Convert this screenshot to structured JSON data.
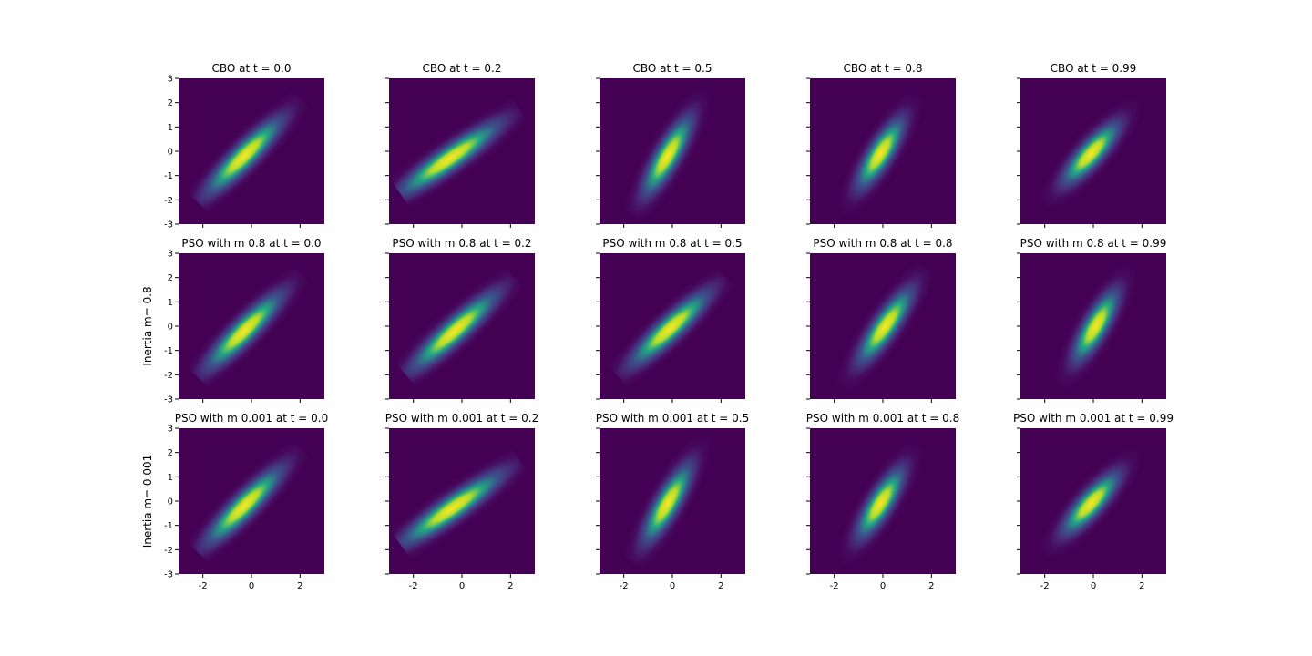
{
  "chart_data": [
    {
      "type": "heatmap",
      "title": "CBO at t = 0.0",
      "xlim": [
        -3,
        3
      ],
      "ylim": [
        -3,
        3
      ],
      "xticks": [
        -2,
        0,
        2
      ],
      "yticks": [
        -3,
        -2,
        -1,
        0,
        1,
        2,
        3
      ],
      "mean": [
        -0.3,
        -0.2
      ],
      "angle": 45,
      "sd": [
        1.3,
        0.3
      ]
    },
    {
      "type": "heatmap",
      "title": "CBO at t = 0.2",
      "xlim": [
        -3,
        3
      ],
      "ylim": [
        -3,
        3
      ],
      "xticks": [
        -2,
        0,
        2
      ],
      "yticks": [
        -3,
        -2,
        -1,
        0,
        1,
        2,
        3
      ],
      "mean": [
        -0.5,
        -0.3
      ],
      "angle": 35,
      "sd": [
        1.5,
        0.3
      ]
    },
    {
      "type": "heatmap",
      "title": "CBO at t = 0.5",
      "xlim": [
        -3,
        3
      ],
      "ylim": [
        -3,
        3
      ],
      "xticks": [
        -2,
        0,
        2
      ],
      "yticks": [
        -3,
        -2,
        -1,
        0,
        1,
        2,
        3
      ],
      "mean": [
        -0.2,
        -0.2
      ],
      "angle": 60,
      "sd": [
        1.1,
        0.3
      ]
    },
    {
      "type": "heatmap",
      "title": "CBO at t = 0.8",
      "xlim": [
        -3,
        3
      ],
      "ylim": [
        -3,
        3
      ],
      "xticks": [
        -2,
        0,
        2
      ],
      "yticks": [
        -3,
        -2,
        -1,
        0,
        1,
        2,
        3
      ],
      "mean": [
        -0.1,
        -0.1
      ],
      "angle": 58,
      "sd": [
        1.0,
        0.3
      ]
    },
    {
      "type": "heatmap",
      "title": "CBO at t = 0.99",
      "xlim": [
        -3,
        3
      ],
      "ylim": [
        -3,
        3
      ],
      "xticks": [
        -2,
        0,
        2
      ],
      "yticks": [
        -3,
        -2,
        -1,
        0,
        1,
        2,
        3
      ],
      "mean": [
        -0.1,
        -0.1
      ],
      "angle": 48,
      "sd": [
        1.0,
        0.3
      ]
    },
    {
      "type": "heatmap",
      "title": "PSO with m 0.8 at t = 0.0",
      "ylabel": "Inertia m= 0.8",
      "xlim": [
        -3,
        3
      ],
      "ylim": [
        -3,
        3
      ],
      "xticks": [
        -2,
        0,
        2
      ],
      "yticks": [
        -3,
        -2,
        -1,
        0,
        1,
        2,
        3
      ],
      "mean": [
        -0.3,
        -0.2
      ],
      "angle": 45,
      "sd": [
        1.3,
        0.3
      ]
    },
    {
      "type": "heatmap",
      "title": "PSO with m 0.8 at t = 0.2",
      "xlim": [
        -3,
        3
      ],
      "ylim": [
        -3,
        3
      ],
      "xticks": [
        -2,
        0,
        2
      ],
      "yticks": [
        -3,
        -2,
        -1,
        0,
        1,
        2,
        3
      ],
      "mean": [
        -0.3,
        -0.2
      ],
      "angle": 42,
      "sd": [
        1.4,
        0.3
      ]
    },
    {
      "type": "heatmap",
      "title": "PSO with m 0.8 at t = 0.5",
      "xlim": [
        -3,
        3
      ],
      "ylim": [
        -3,
        3
      ],
      "xticks": [
        -2,
        0,
        2
      ],
      "yticks": [
        -3,
        -2,
        -1,
        0,
        1,
        2,
        3
      ],
      "mean": [
        -0.1,
        -0.1
      ],
      "angle": 43,
      "sd": [
        1.3,
        0.3
      ]
    },
    {
      "type": "heatmap",
      "title": "PSO with m 0.8 at t = 0.8",
      "xlim": [
        -3,
        3
      ],
      "ylim": [
        -3,
        3
      ],
      "xticks": [
        -2,
        0,
        2
      ],
      "yticks": [
        -3,
        -2,
        -1,
        0,
        1,
        2,
        3
      ],
      "mean": [
        0.1,
        0.0
      ],
      "angle": 55,
      "sd": [
        1.1,
        0.3
      ]
    },
    {
      "type": "heatmap",
      "title": "PSO with m 0.8 at t = 0.99",
      "xlim": [
        -3,
        3
      ],
      "ylim": [
        -3,
        3
      ],
      "xticks": [
        -2,
        0,
        2
      ],
      "yticks": [
        -3,
        -2,
        -1,
        0,
        1,
        2,
        3
      ],
      "mean": [
        0.1,
        0.0
      ],
      "angle": 60,
      "sd": [
        1.0,
        0.3
      ]
    },
    {
      "type": "heatmap",
      "title": "PSO with m 0.001 at t = 0.0",
      "ylabel": "Inertia m= 0.001",
      "xlim": [
        -3,
        3
      ],
      "ylim": [
        -3,
        3
      ],
      "xticks": [
        -2,
        0,
        2
      ],
      "yticks": [
        -3,
        -2,
        -1,
        0,
        1,
        2,
        3
      ],
      "mean": [
        -0.3,
        -0.2
      ],
      "angle": 45,
      "sd": [
        1.3,
        0.3
      ]
    },
    {
      "type": "heatmap",
      "title": "PSO with m 0.001 at t = 0.2",
      "xlim": [
        -3,
        3
      ],
      "ylim": [
        -3,
        3
      ],
      "xticks": [
        -2,
        0,
        2
      ],
      "yticks": [
        -3,
        -2,
        -1,
        0,
        1,
        2,
        3
      ],
      "mean": [
        -0.4,
        -0.3
      ],
      "angle": 35,
      "sd": [
        1.5,
        0.3
      ]
    },
    {
      "type": "heatmap",
      "title": "PSO with m 0.001 at t = 0.5",
      "xlim": [
        -3,
        3
      ],
      "ylim": [
        -3,
        3
      ],
      "xticks": [
        -2,
        0,
        2
      ],
      "yticks": [
        -3,
        -2,
        -1,
        0,
        1,
        2,
        3
      ],
      "mean": [
        -0.2,
        -0.1
      ],
      "angle": 60,
      "sd": [
        1.1,
        0.3
      ]
    },
    {
      "type": "heatmap",
      "title": "PSO with m 0.001 at t = 0.8",
      "xlim": [
        -3,
        3
      ],
      "ylim": [
        -3,
        3
      ],
      "xticks": [
        -2,
        0,
        2
      ],
      "yticks": [
        -3,
        -2,
        -1,
        0,
        1,
        2,
        3
      ],
      "mean": [
        -0.1,
        -0.1
      ],
      "angle": 58,
      "sd": [
        1.0,
        0.3
      ]
    },
    {
      "type": "heatmap",
      "title": "PSO with m 0.001 at t = 0.99",
      "xlim": [
        -3,
        3
      ],
      "ylim": [
        -3,
        3
      ],
      "xticks": [
        -2,
        0,
        2
      ],
      "yticks": [
        -3,
        -2,
        -1,
        0,
        1,
        2,
        3
      ],
      "mean": [
        -0.1,
        -0.1
      ],
      "angle": 48,
      "sd": [
        1.0,
        0.3
      ]
    }
  ]
}
